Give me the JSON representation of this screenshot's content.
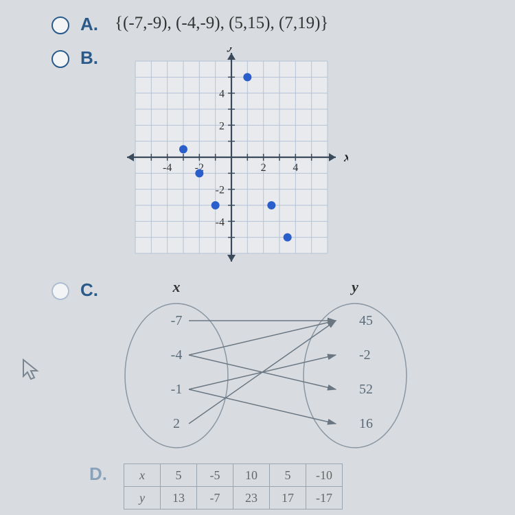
{
  "optionA": {
    "label": "A.",
    "text": "{(-7,-9), (-4,-9), (5,15), (7,19)}"
  },
  "optionB": {
    "label": "B.",
    "graph": {
      "type": "scatter",
      "x_label": "x",
      "y_label": "y",
      "xlim": [
        -6,
        6
      ],
      "ylim": [
        -6,
        6
      ],
      "tick_step": 2,
      "xtick_labels": {
        "-4": "-4",
        "-2": "-2",
        "2": "2",
        "4": "4"
      },
      "ytick_labels": {
        "-4": "-4",
        "-2": "-2",
        "2": "2",
        "4": "4"
      },
      "grid_color": "#b5c3d6",
      "axis_color": "#3a4a5a",
      "point_color": "#2a5ecb",
      "points": [
        {
          "x": 1,
          "y": 5
        },
        {
          "x": -3,
          "y": 0.5
        },
        {
          "x": -2,
          "y": -1
        },
        {
          "x": -1,
          "y": -3
        },
        {
          "x": 2.5,
          "y": -3
        },
        {
          "x": 3.5,
          "y": -5
        }
      ],
      "background_color": "#e8eaed"
    }
  },
  "optionC": {
    "label": "C.",
    "mapping": {
      "type": "mapping-diagram",
      "domain_label": "x",
      "range_label": "y",
      "domain": [
        "-7",
        "-4",
        "-1",
        "2"
      ],
      "range": [
        "45",
        "-2",
        "52",
        "16"
      ],
      "edges": [
        {
          "from": 0,
          "to": 0
        },
        {
          "from": 1,
          "to": 0
        },
        {
          "from": 1,
          "to": 2
        },
        {
          "from": 2,
          "to": 1
        },
        {
          "from": 2,
          "to": 3
        },
        {
          "from": 3,
          "to": 0
        }
      ],
      "text_color": "#5a6a78",
      "line_color": "#6a7682",
      "ellipse_color": "#8a96a2"
    }
  },
  "optionD": {
    "label": "D.",
    "table": {
      "type": "table",
      "row_headers": [
        "x",
        "y"
      ],
      "cols": [
        [
          "5",
          "13"
        ],
        [
          "-5",
          "-7"
        ],
        [
          "10",
          "23"
        ],
        [
          "5",
          "17"
        ],
        [
          "-10",
          "-17"
        ]
      ],
      "border_color": "#9aa4ae",
      "text_color": "#666"
    }
  }
}
